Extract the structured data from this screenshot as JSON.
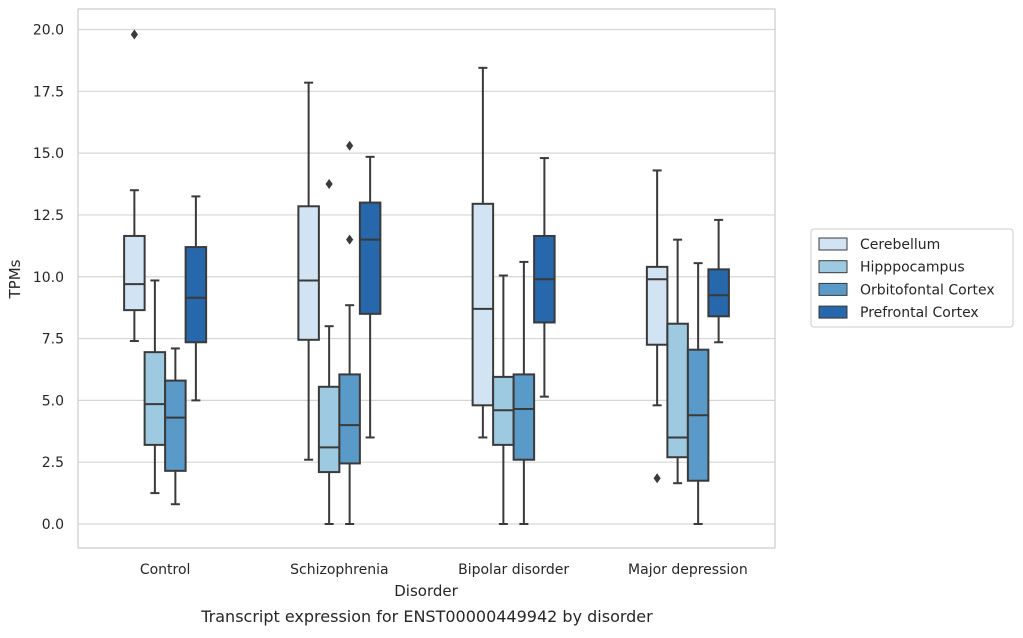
{
  "chart_data": {
    "type": "box",
    "title": "",
    "caption": "Transcript expression for ENST00000449942 by disorder",
    "xlabel": "Disorder",
    "ylabel": "TPMs",
    "ylim": [
      -0.95,
      20.8
    ],
    "yticks": [
      "0.0",
      "2.5",
      "5.0",
      "7.5",
      "10.0",
      "12.5",
      "15.0",
      "17.5",
      "20.0"
    ],
    "categories": [
      "Control",
      "Schizophrenia",
      "Bipolar disorder",
      "Major depression"
    ],
    "grid": "horizontal",
    "legend_position": "right",
    "series": [
      {
        "name": "Cerebellum",
        "color": "#d2e3f3",
        "boxes": [
          {
            "whisker_low": 7.4,
            "q1": 8.65,
            "median": 9.7,
            "q3": 11.65,
            "whisker_high": 13.5,
            "outliers": [
              19.8
            ]
          },
          {
            "whisker_low": 2.6,
            "q1": 7.45,
            "median": 9.85,
            "q3": 12.85,
            "whisker_high": 17.85,
            "outliers": []
          },
          {
            "whisker_low": 3.5,
            "q1": 4.8,
            "median": 8.7,
            "q3": 12.95,
            "whisker_high": 18.45,
            "outliers": []
          },
          {
            "whisker_low": 4.8,
            "q1": 7.25,
            "median": 9.9,
            "q3": 10.4,
            "whisker_high": 14.3,
            "outliers": [
              1.85
            ]
          }
        ]
      },
      {
        "name": "Hipppocampus",
        "color": "#9ecae1",
        "boxes": [
          {
            "whisker_low": 1.25,
            "q1": 3.2,
            "median": 4.85,
            "q3": 6.95,
            "whisker_high": 9.85,
            "outliers": []
          },
          {
            "whisker_low": 0.0,
            "q1": 2.1,
            "median": 3.1,
            "q3": 5.55,
            "whisker_high": 8.0,
            "outliers": [
              13.75
            ]
          },
          {
            "whisker_low": 0.0,
            "q1": 3.2,
            "median": 4.6,
            "q3": 5.95,
            "whisker_high": 10.05,
            "outliers": []
          },
          {
            "whisker_low": 1.65,
            "q1": 2.7,
            "median": 3.5,
            "q3": 8.1,
            "whisker_high": 11.5,
            "outliers": []
          }
        ]
      },
      {
        "name": "Orbitofontal Cortex",
        "color": "#5a9ac8",
        "boxes": [
          {
            "whisker_low": 0.8,
            "q1": 2.15,
            "median": 4.3,
            "q3": 5.8,
            "whisker_high": 7.1,
            "outliers": []
          },
          {
            "whisker_low": 0.0,
            "q1": 2.45,
            "median": 4.0,
            "q3": 6.05,
            "whisker_high": 8.85,
            "outliers": [
              15.3,
              11.5
            ]
          },
          {
            "whisker_low": 0.0,
            "q1": 2.6,
            "median": 4.65,
            "q3": 6.05,
            "whisker_high": 10.6,
            "outliers": []
          },
          {
            "whisker_low": 0.0,
            "q1": 1.75,
            "median": 4.4,
            "q3": 7.05,
            "whisker_high": 10.55,
            "outliers": []
          }
        ]
      },
      {
        "name": "Prefrontal Cortex",
        "color": "#2767ab",
        "boxes": [
          {
            "whisker_low": 5.0,
            "q1": 7.35,
            "median": 9.15,
            "q3": 11.2,
            "whisker_high": 13.25,
            "outliers": []
          },
          {
            "whisker_low": 3.5,
            "q1": 8.5,
            "median": 11.5,
            "q3": 13.0,
            "whisker_high": 14.85,
            "outliers": []
          },
          {
            "whisker_low": 5.15,
            "q1": 8.15,
            "median": 9.9,
            "q3": 11.65,
            "whisker_high": 14.8,
            "outliers": []
          },
          {
            "whisker_low": 7.35,
            "q1": 8.4,
            "median": 9.25,
            "q3": 10.3,
            "whisker_high": 12.3,
            "outliers": []
          }
        ]
      }
    ]
  }
}
